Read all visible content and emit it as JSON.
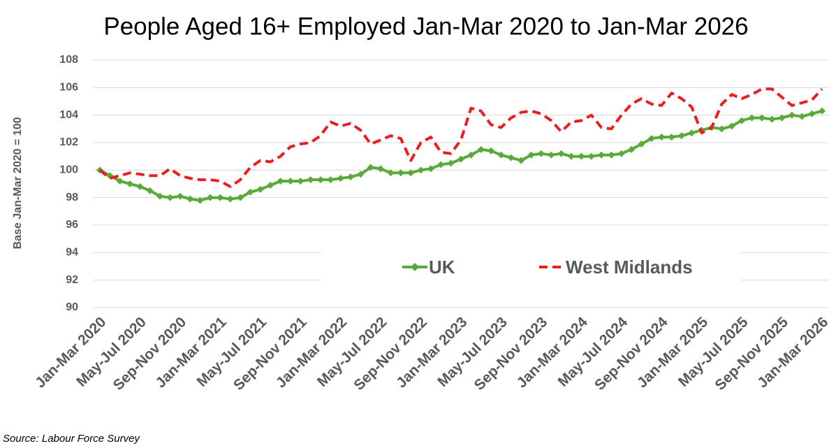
{
  "chart_data": {
    "type": "line",
    "title": "People Aged 16+ Employed Jan-Mar 2020 to Jan-Mar 2026",
    "ylabel": "Base Jan-Mar 2020 = 100",
    "source": "Source: Labour Force Survey",
    "categories": [
      "Jan-Mar 2020",
      null,
      null,
      null,
      "May-Jul 2020",
      null,
      null,
      null,
      "Sep-Nov 2020",
      null,
      null,
      null,
      "Jan-Mar 2021",
      null,
      null,
      null,
      "May-Jul 2021",
      null,
      null,
      null,
      "Sep-Nov 2021",
      null,
      null,
      null,
      "Jan-Mar 2022",
      null,
      null,
      null,
      "May-Jul 2022",
      null,
      null,
      null,
      "Sep-Nov 2022",
      null,
      null,
      null,
      "Jan-Mar 2023",
      null,
      null,
      null,
      "May-Jul 2023",
      null,
      null,
      null,
      "Sep-Nov 2023",
      null,
      null,
      null,
      "Jan-Mar 2024",
      null,
      null,
      null,
      "May-Jul 2024",
      null,
      null,
      null,
      "Sep-Nov 2024",
      null,
      null,
      null,
      "Jan-Mar 2025",
      null,
      null,
      null,
      "May-Jul 2025",
      null,
      null,
      null,
      "Sep-Nov 2025",
      null,
      null,
      null,
      "Jan-Mar 2026"
    ],
    "series": [
      {
        "name": "UK",
        "color": "#5aaa3a",
        "dashed": false,
        "markers": true,
        "values": [
          100.0,
          99.6,
          99.2,
          99.0,
          98.8,
          98.5,
          98.1,
          98.0,
          98.1,
          97.9,
          97.8,
          98.0,
          98.0,
          97.9,
          98.0,
          98.4,
          98.6,
          98.9,
          99.2,
          99.2,
          99.2,
          99.3,
          99.3,
          99.3,
          99.4,
          99.5,
          99.7,
          100.2,
          100.1,
          99.8,
          99.8,
          99.8,
          100.0,
          100.1,
          100.4,
          100.5,
          100.8,
          101.1,
          101.5,
          101.4,
          101.1,
          100.9,
          100.7,
          101.1,
          101.2,
          101.1,
          101.2,
          101.0,
          101.0,
          101.0,
          101.1,
          101.1,
          101.2,
          101.5,
          101.9,
          102.3,
          102.4,
          102.4,
          102.5,
          102.7,
          102.9,
          103.1,
          103.0,
          103.2,
          103.6,
          103.8,
          103.8,
          103.7,
          103.8,
          104.0,
          103.9,
          104.1,
          104.3
        ]
      },
      {
        "name": "West Midlands",
        "color": "#ee1c1c",
        "dashed": true,
        "markers": false,
        "values": [
          100.0,
          99.4,
          99.6,
          99.8,
          99.7,
          99.6,
          99.6,
          100.1,
          99.6,
          99.4,
          99.3,
          99.3,
          99.2,
          98.8,
          99.3,
          100.2,
          100.7,
          100.6,
          101.0,
          101.7,
          101.9,
          102.0,
          102.5,
          103.5,
          103.2,
          103.4,
          102.9,
          101.9,
          102.2,
          102.5,
          102.3,
          100.7,
          102.0,
          102.4,
          101.3,
          101.2,
          102.2,
          104.5,
          104.3,
          103.3,
          103.1,
          103.8,
          104.2,
          104.3,
          104.1,
          103.6,
          102.8,
          103.5,
          103.6,
          104.0,
          103.1,
          103.0,
          104.0,
          104.8,
          105.2,
          104.8,
          104.7,
          105.6,
          105.2,
          104.6,
          102.7,
          103.1,
          104.8,
          105.5,
          105.2,
          105.5,
          105.9,
          105.9,
          105.3,
          104.7,
          104.9,
          105.1,
          105.9
        ]
      }
    ],
    "ylim": [
      90,
      108
    ],
    "yticks": [
      90,
      92,
      94,
      96,
      98,
      100,
      102,
      104,
      106,
      108
    ],
    "grid": true,
    "legend": "bottom-center"
  }
}
